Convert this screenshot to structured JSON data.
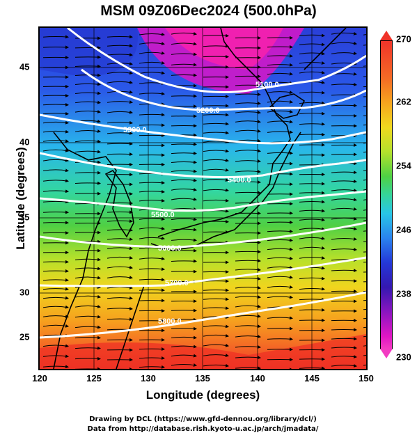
{
  "title": "MSM 09Z06Dec2024 (500.0hPa)",
  "xlabel": "Longitude (degrees)",
  "ylabel": "Latitude  (degrees)",
  "xticks": [
    "120",
    "125",
    "130",
    "135",
    "140",
    "145",
    "150"
  ],
  "yticks": [
    "45",
    "40",
    "35",
    "30",
    "25"
  ],
  "colorbar": {
    "ticks": [
      "270",
      "262",
      "254",
      "246",
      "238",
      "230"
    ],
    "top_color": "#f0342a",
    "bottom_color": "#f23bc2"
  },
  "contours": [
    {
      "label": "5100.0"
    },
    {
      "label": "5200.0"
    },
    {
      "label": "5300.0"
    },
    {
      "label": "5400.0"
    },
    {
      "label": "5500.0"
    },
    {
      "label": "5600.0"
    },
    {
      "label": "5700.0"
    },
    {
      "label": "5800.0"
    }
  ],
  "credits": {
    "line1": "Drawing by DCL (https://www.gfd-dennou.org/library/dcl/)",
    "line2": "Data from http://database.rish.kyoto-u.ac.jp/arch/jmadata/"
  }
}
